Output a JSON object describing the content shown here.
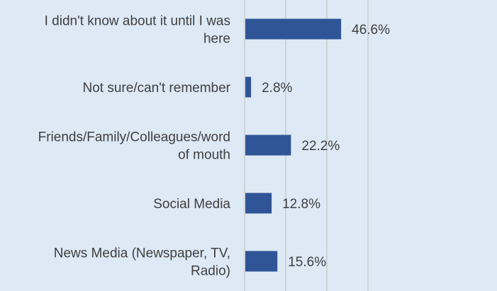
{
  "chart_data": {
    "type": "bar",
    "orientation": "horizontal",
    "title": "",
    "xlabel": "",
    "ylabel": "",
    "xlim": [
      0,
      60
    ],
    "gridlines": "vertical",
    "grid_step": 20,
    "legend": "none",
    "categories": [
      [
        "I didn't know about it until I was",
        "here"
      ],
      [
        "Not sure/can't remember"
      ],
      [
        "Friends/Family/Colleagues/word",
        "of mouth"
      ],
      [
        "Social Media"
      ],
      [
        "News Media (Newspaper, TV,",
        "Radio)"
      ]
    ],
    "values": [
      46.6,
      2.8,
      22.2,
      12.8,
      15.6
    ],
    "data_labels": [
      "46.6%",
      "2.8%",
      "22.2%",
      "12.8%",
      "15.6%"
    ],
    "colors": {
      "bar": "#2f5597",
      "background": "#dde9f5",
      "grid": "#bfbfbf",
      "text": "#404040"
    }
  }
}
